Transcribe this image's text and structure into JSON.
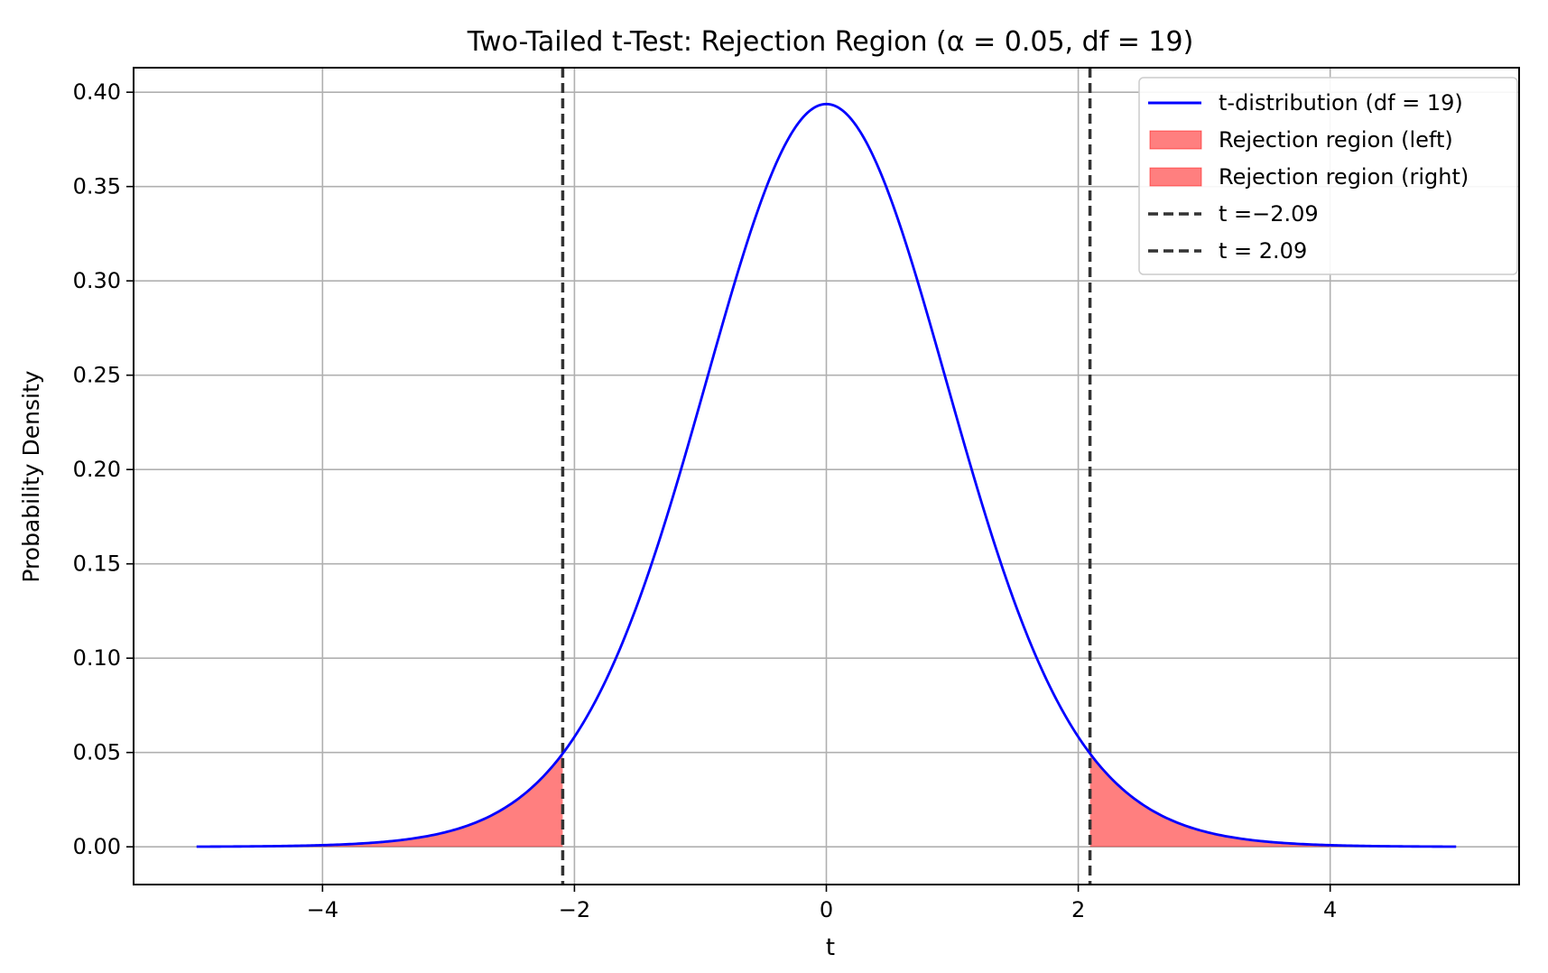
{
  "chart_data": {
    "type": "line",
    "title": "Two-Tailed t-Test: Rejection Region (α = 0.05, df = 19)",
    "xlabel": "t",
    "ylabel": "Probability Density",
    "xlim": [
      -5.5,
      5.5
    ],
    "ylim": [
      -0.02,
      0.413
    ],
    "x_ticks": [
      -4,
      -2,
      0,
      2,
      4
    ],
    "x_tick_labels": [
      "−4",
      "−2",
      "0",
      "2",
      "4"
    ],
    "y_ticks": [
      0.0,
      0.05,
      0.1,
      0.15,
      0.2,
      0.25,
      0.3,
      0.35,
      0.4
    ],
    "y_tick_labels": [
      "0.00",
      "0.05",
      "0.10",
      "0.15",
      "0.20",
      "0.25",
      "0.30",
      "0.35",
      "0.40"
    ],
    "grid": true,
    "legend_position": "top-right",
    "distribution": {
      "name": "t",
      "df": 19
    },
    "curve_range": [
      -5,
      5
    ],
    "critical_value": 2.093,
    "series": [
      {
        "name": "t-distribution (df = 19)",
        "kind": "line",
        "color": "#0000ff",
        "from": -5,
        "to": 5
      },
      {
        "name": "Rejection region (left)",
        "kind": "area",
        "color": "#ff0000",
        "opacity": 0.5,
        "from": -5,
        "to": -2.093
      },
      {
        "name": "Rejection region (right)",
        "kind": "area",
        "color": "#ff0000",
        "opacity": 0.5,
        "from": 2.093,
        "to": 5
      },
      {
        "name": "t =−2.09",
        "kind": "vline",
        "color": "#333333",
        "x": -2.093
      },
      {
        "name": "t = 2.09",
        "kind": "vline",
        "color": "#333333",
        "x": 2.093
      }
    ]
  }
}
